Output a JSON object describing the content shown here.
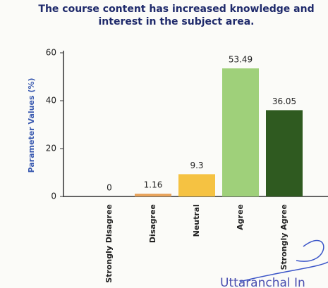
{
  "chart_data": {
    "type": "bar",
    "title": "The course content has increased knowledge and interest in the subject area.",
    "ylabel": "Parameter Values (%)",
    "categories": [
      "Strongly Disagree",
      "Disagree",
      "Neutral",
      "Agree",
      "Strongly Agree"
    ],
    "values": [
      0,
      1.16,
      9.3,
      53.49,
      36.05
    ],
    "colors": [
      "#c0504d",
      "#e8a35a",
      "#f5c242",
      "#9fd07a",
      "#2f5a20"
    ],
    "ylim": [
      0,
      60
    ],
    "yticks": [
      0,
      20,
      40,
      60
    ],
    "grid": false
  },
  "watermark": "Uttaranchal In"
}
